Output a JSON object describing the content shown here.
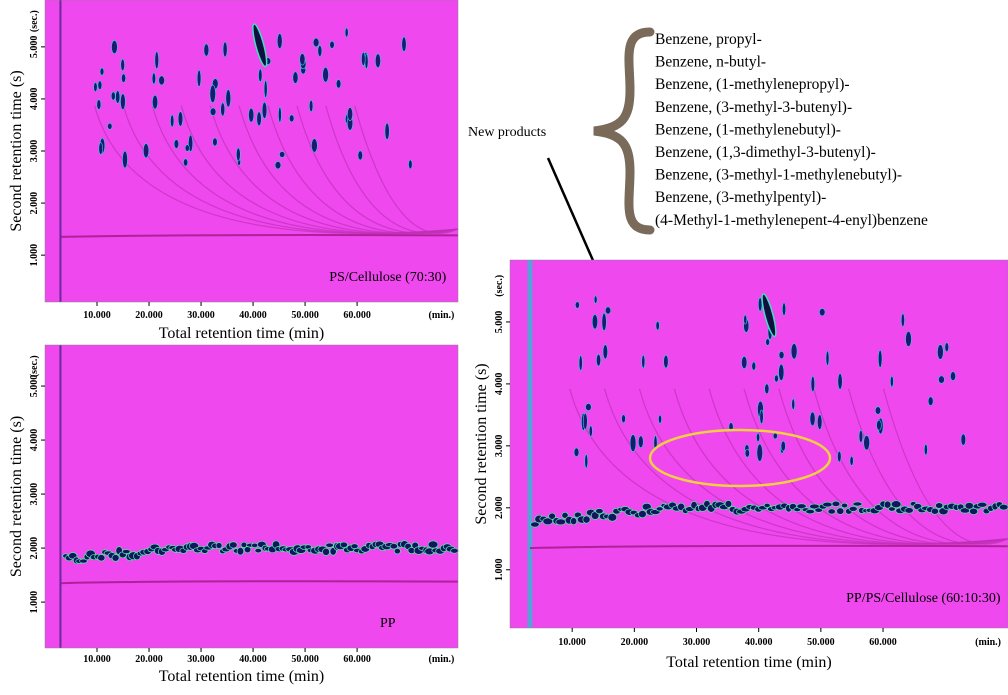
{
  "chart_data": [
    {
      "type": "heatmap",
      "annotation": "PS/Cellulose (70:30)",
      "x_label": "Total retention time (min)",
      "y_label": "Second retention time (s)",
      "x_unit": "(min.)",
      "y_unit": "(sec.)",
      "xlim": [
        0,
        79.4
      ],
      "ylim": [
        0.1,
        5.9
      ],
      "xticks": [
        {
          "value": 10,
          "label": "10.000"
        },
        {
          "value": 20,
          "label": "20.000"
        },
        {
          "value": 30,
          "label": "30.000"
        },
        {
          "value": 40,
          "label": "40.000"
        },
        {
          "value": 50,
          "label": "50.000"
        },
        {
          "value": 60,
          "label": "60.000"
        }
      ],
      "yticks": [
        {
          "value": 1,
          "label": "1.000"
        },
        {
          "value": 2,
          "label": "2.000"
        },
        {
          "value": 3,
          "label": "3.000"
        },
        {
          "value": 4,
          "label": "4.000"
        },
        {
          "value": 5,
          "label": "5.000"
        }
      ]
    },
    {
      "type": "heatmap",
      "annotation": "PP",
      "x_label": "Total retention time (min)",
      "y_label": "Second retention time (s)",
      "x_unit": "(min.)",
      "y_unit": "(sec.)",
      "xlim": [
        0,
        79.4
      ],
      "ylim": [
        0.15,
        5.76
      ],
      "xticks": [
        {
          "value": 10,
          "label": "10.000"
        },
        {
          "value": 20,
          "label": "20.000"
        },
        {
          "value": 30,
          "label": "30.000"
        },
        {
          "value": 40,
          "label": "40.000"
        },
        {
          "value": 50,
          "label": "50.000"
        },
        {
          "value": 60,
          "label": "60.000"
        }
      ],
      "yticks": [
        {
          "value": 1,
          "label": "1.000"
        },
        {
          "value": 2,
          "label": "2.000"
        },
        {
          "value": 3,
          "label": "3.000"
        },
        {
          "value": 4,
          "label": "4.000"
        },
        {
          "value": 5,
          "label": "5.000"
        }
      ]
    },
    {
      "type": "heatmap",
      "annotation": "PP/PS/Cellulose (60:10:30)",
      "x_label": "Total retention time (min)",
      "y_label": "Second retention time (s)",
      "x_unit": "(min.)",
      "y_unit": "(sec.)",
      "xlim": [
        0,
        80.1
      ],
      "ylim": [
        0.06,
        6.0
      ],
      "xticks": [
        {
          "value": 10,
          "label": "10.000"
        },
        {
          "value": 20,
          "label": "20.000"
        },
        {
          "value": 30,
          "label": "30.000"
        },
        {
          "value": 40,
          "label": "40.000"
        },
        {
          "value": 50,
          "label": "50.000"
        },
        {
          "value": 60,
          "label": "60.000"
        }
      ],
      "yticks": [
        {
          "value": 1,
          "label": "1.000"
        },
        {
          "value": 2,
          "label": "2.000"
        },
        {
          "value": 3,
          "label": "3.000"
        },
        {
          "value": 4,
          "label": "4.000"
        },
        {
          "value": 5,
          "label": "5.000"
        }
      ]
    }
  ],
  "new_products": {
    "label": "New products",
    "compounds": [
      "Benzene, propyl-",
      "Benzene, n-butyl-",
      "Benzene, (1-methylenepropyl)-",
      "Benzene, (3-methyl-3-butenyl)-",
      "Benzene, (1-methylenebutyl)-",
      "Benzene, (1,3-dimethyl-3-butenyl)-",
      "Benzene, (3-methyl-1-methylenebutyl)-",
      "Benzene, (3-methylpentyl)-",
      "(4-Methyl-1-methylenepent-4-enyl)benzene"
    ]
  }
}
